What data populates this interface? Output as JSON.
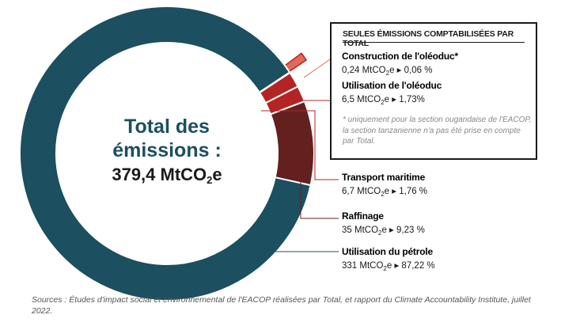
{
  "center": {
    "title_line1": "Total des",
    "title_line2": "émissions :",
    "total_value": "379,4 MtCO",
    "total_sub": "2",
    "total_suffix": "e"
  },
  "box": {
    "title": "SEULES ÉMISSIONS COMPTABILISÉES PAR TOTAL",
    "note": "* uniquement pour la section ougandaise de l'EACOP, la section tanzanienne n'a pas été prise en compte par Total."
  },
  "chart_data": {
    "type": "pie",
    "title": "Total des émissions : 379,4 MtCO2e",
    "unit": "MtCO2e",
    "total": 379.4,
    "slices": [
      {
        "name": "Utilisation du pétrole",
        "value": 331,
        "percent": 87.22,
        "color": "#1c4f5f",
        "label": "Utilisation du pétrole",
        "value_text": "331 MtCO",
        "pct_text": "e ▸ 87,22 %",
        "label_color": "#1c4f5f"
      },
      {
        "name": "Raffinage",
        "value": 35,
        "percent": 9.23,
        "color": "#63201f",
        "label": "Raffinage",
        "value_text": "35 MtCO",
        "pct_text": "e ▸ 9,23 %",
        "label_color": "#63201f"
      },
      {
        "name": "Transport maritime",
        "value": 6.7,
        "percent": 1.76,
        "color": "#b52424",
        "label": "Transport maritime",
        "value_text": "6,7 MtCO",
        "pct_text": "e ▸ 1,76 %",
        "label_color": "#b52424"
      },
      {
        "name": "Utilisation de l'oléoduc",
        "value": 6.5,
        "percent": 1.73,
        "color": "#b52424",
        "label": "Utilisation de l'oléoduc",
        "value_text": "6,5 MtCO",
        "pct_text": "e ▸ 1,73%",
        "label_color": "#b52424"
      },
      {
        "name": "Construction de l'oléoduc*",
        "value": 0.24,
        "percent": 0.06,
        "color": "#e2695a",
        "label": "Construction de l'oléoduc*",
        "value_text": "0,24 MtCO",
        "pct_text": "e ▸ 0,06 %",
        "label_color": "#e2695a"
      }
    ]
  },
  "source": "Sources : Études d'impact social et environnemental de l'EACOP réalisées par Total, et rapport du Climate Accountability Institute, juillet 2022."
}
